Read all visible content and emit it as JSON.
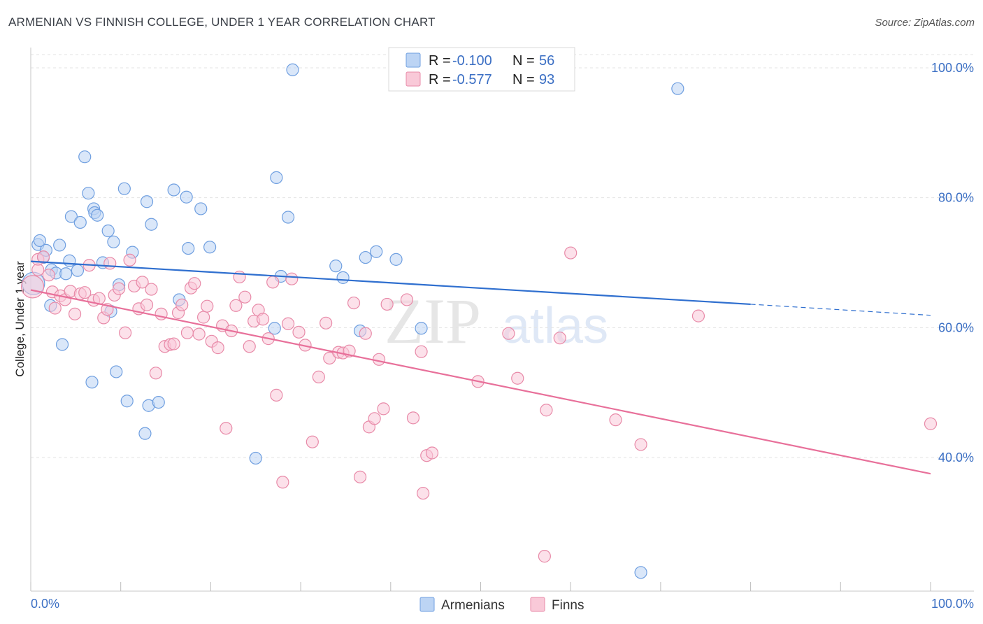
{
  "title": "ARMENIAN VS FINNISH COLLEGE, UNDER 1 YEAR CORRELATION CHART",
  "source": "Source: ZipAtlas.com",
  "watermark": {
    "zip": "ZIP",
    "atlas": "atlas"
  },
  "colors": {
    "armenian_fill": "#bcd4f4",
    "armenian_stroke": "#6f9fe0",
    "armenian_line": "#2f6fcf",
    "finn_fill": "#f9c9d8",
    "finn_stroke": "#e88aa8",
    "finn_line": "#e8709a",
    "accent_text": "#3b6fc4",
    "grid": "#e3e3e3"
  },
  "legend": {
    "rows": [
      {
        "r_label": "R = ",
        "r_value": "-0.100",
        "n_label": "N = ",
        "n_value": "56",
        "series": "armenian"
      },
      {
        "r_label": "R = ",
        "r_value": "-0.577",
        "n_label": "N = ",
        "n_value": "93",
        "series": "finn"
      }
    ]
  },
  "chart_data": {
    "type": "scatter",
    "xlabel": "",
    "ylabel": "College, Under 1 year",
    "xlim": [
      0,
      100
    ],
    "ylim": [
      20,
      102
    ],
    "x_tick_labels": [
      "0.0%",
      "100.0%"
    ],
    "y_ticks": [
      40,
      60,
      80,
      100
    ],
    "y_tick_labels": [
      "40.0%",
      "60.0%",
      "80.0%",
      "100.0%"
    ],
    "series": [
      {
        "name": "Armenians",
        "trend": {
          "x0": 0,
          "y0": 70.2,
          "x1": 80,
          "y1": 63.6,
          "dash_to": 100,
          "dash_y": 61.9
        },
        "points": [
          [
            0.3,
            66.8
          ],
          [
            0.8,
            72.8
          ],
          [
            1.0,
            73.4
          ],
          [
            1.4,
            70.8
          ],
          [
            1.7,
            71.9
          ],
          [
            2.2,
            63.4
          ],
          [
            2.3,
            68.9
          ],
          [
            2.8,
            68.4
          ],
          [
            3.2,
            72.7
          ],
          [
            3.5,
            57.4
          ],
          [
            3.9,
            68.3
          ],
          [
            4.3,
            70.3
          ],
          [
            4.5,
            77.1
          ],
          [
            5.2,
            68.8
          ],
          [
            5.5,
            76.2
          ],
          [
            6.0,
            86.3
          ],
          [
            6.4,
            80.7
          ],
          [
            6.8,
            51.6
          ],
          [
            7.0,
            78.3
          ],
          [
            7.1,
            77.7
          ],
          [
            7.4,
            77.3
          ],
          [
            8.0,
            70.0
          ],
          [
            8.6,
            74.9
          ],
          [
            8.9,
            62.5
          ],
          [
            9.2,
            73.2
          ],
          [
            9.5,
            53.2
          ],
          [
            9.8,
            66.6
          ],
          [
            10.4,
            81.4
          ],
          [
            10.7,
            48.7
          ],
          [
            11.3,
            71.6
          ],
          [
            12.7,
            43.7
          ],
          [
            12.9,
            79.4
          ],
          [
            13.1,
            48.0
          ],
          [
            13.4,
            75.9
          ],
          [
            14.2,
            48.5
          ],
          [
            15.9,
            81.2
          ],
          [
            16.5,
            64.3
          ],
          [
            17.3,
            80.1
          ],
          [
            17.5,
            72.2
          ],
          [
            18.9,
            78.3
          ],
          [
            19.9,
            72.4
          ],
          [
            25.0,
            39.9
          ],
          [
            27.1,
            59.9
          ],
          [
            27.3,
            83.1
          ],
          [
            27.8,
            67.9
          ],
          [
            28.6,
            77.0
          ],
          [
            29.1,
            99.7
          ],
          [
            33.9,
            69.5
          ],
          [
            34.7,
            67.7
          ],
          [
            36.6,
            59.5
          ],
          [
            37.2,
            70.8
          ],
          [
            38.4,
            71.7
          ],
          [
            40.6,
            70.5
          ],
          [
            43.4,
            59.9
          ],
          [
            67.8,
            22.3
          ],
          [
            71.9,
            96.8
          ]
        ]
      },
      {
        "name": "Finns",
        "trend": {
          "x0": 0,
          "y0": 65.8,
          "x1": 100,
          "y1": 37.5
        },
        "points": [
          [
            0.2,
            66.3
          ],
          [
            0.8,
            70.5
          ],
          [
            1.4,
            70.9
          ],
          [
            2.0,
            68.1
          ],
          [
            2.4,
            65.5
          ],
          [
            2.7,
            63.0
          ],
          [
            3.3,
            64.9
          ],
          [
            3.8,
            64.3
          ],
          [
            4.4,
            65.6
          ],
          [
            4.9,
            62.1
          ],
          [
            5.5,
            65.2
          ],
          [
            6.0,
            65.4
          ],
          [
            6.5,
            69.6
          ],
          [
            7.0,
            64.2
          ],
          [
            7.6,
            64.5
          ],
          [
            8.1,
            61.5
          ],
          [
            8.5,
            62.8
          ],
          [
            8.8,
            69.9
          ],
          [
            9.3,
            65.0
          ],
          [
            9.8,
            66.0
          ],
          [
            10.5,
            59.2
          ],
          [
            11.0,
            70.4
          ],
          [
            11.5,
            66.4
          ],
          [
            12.0,
            62.9
          ],
          [
            12.4,
            67.0
          ],
          [
            12.9,
            63.5
          ],
          [
            13.4,
            65.9
          ],
          [
            13.9,
            53.0
          ],
          [
            14.5,
            62.1
          ],
          [
            14.9,
            57.1
          ],
          [
            15.5,
            57.4
          ],
          [
            15.9,
            57.5
          ],
          [
            16.4,
            62.3
          ],
          [
            16.8,
            63.5
          ],
          [
            17.4,
            59.2
          ],
          [
            17.8,
            66.1
          ],
          [
            18.2,
            66.8
          ],
          [
            18.7,
            59.0
          ],
          [
            19.2,
            61.6
          ],
          [
            19.6,
            63.3
          ],
          [
            20.1,
            57.9
          ],
          [
            20.8,
            56.9
          ],
          [
            21.3,
            60.3
          ],
          [
            21.7,
            44.5
          ],
          [
            22.3,
            59.5
          ],
          [
            22.8,
            63.4
          ],
          [
            23.2,
            67.8
          ],
          [
            23.8,
            64.7
          ],
          [
            24.3,
            57.1
          ],
          [
            24.8,
            61.0
          ],
          [
            25.3,
            62.7
          ],
          [
            25.8,
            61.3
          ],
          [
            26.4,
            58.3
          ],
          [
            26.9,
            67.0
          ],
          [
            27.3,
            49.6
          ],
          [
            28.0,
            36.2
          ],
          [
            28.6,
            60.6
          ],
          [
            29.0,
            67.5
          ],
          [
            29.8,
            59.3
          ],
          [
            30.5,
            57.3
          ],
          [
            31.3,
            42.4
          ],
          [
            32.0,
            52.4
          ],
          [
            32.8,
            60.7
          ],
          [
            33.2,
            55.3
          ],
          [
            34.2,
            56.2
          ],
          [
            34.7,
            56.1
          ],
          [
            35.4,
            56.4
          ],
          [
            35.9,
            63.8
          ],
          [
            36.6,
            37.0
          ],
          [
            37.2,
            59.1
          ],
          [
            37.6,
            44.7
          ],
          [
            38.2,
            46.0
          ],
          [
            38.7,
            55.1
          ],
          [
            39.2,
            47.5
          ],
          [
            39.6,
            63.6
          ],
          [
            41.8,
            64.3
          ],
          [
            42.5,
            46.1
          ],
          [
            43.4,
            56.3
          ],
          [
            43.6,
            34.5
          ],
          [
            44.0,
            40.3
          ],
          [
            44.6,
            40.7
          ],
          [
            49.7,
            51.7
          ],
          [
            53.1,
            59.1
          ],
          [
            54.1,
            52.2
          ],
          [
            57.1,
            24.8
          ],
          [
            57.3,
            47.3
          ],
          [
            58.8,
            58.4
          ],
          [
            60.0,
            71.5
          ],
          [
            65.0,
            45.8
          ],
          [
            67.8,
            42.0
          ],
          [
            74.2,
            61.8
          ],
          [
            100.0,
            45.2
          ],
          [
            0.8,
            68.9
          ]
        ]
      }
    ]
  },
  "bottom_legend": {
    "items": [
      {
        "label": "Armenians",
        "series": "armenian"
      },
      {
        "label": "Finns",
        "series": "finn"
      }
    ]
  }
}
